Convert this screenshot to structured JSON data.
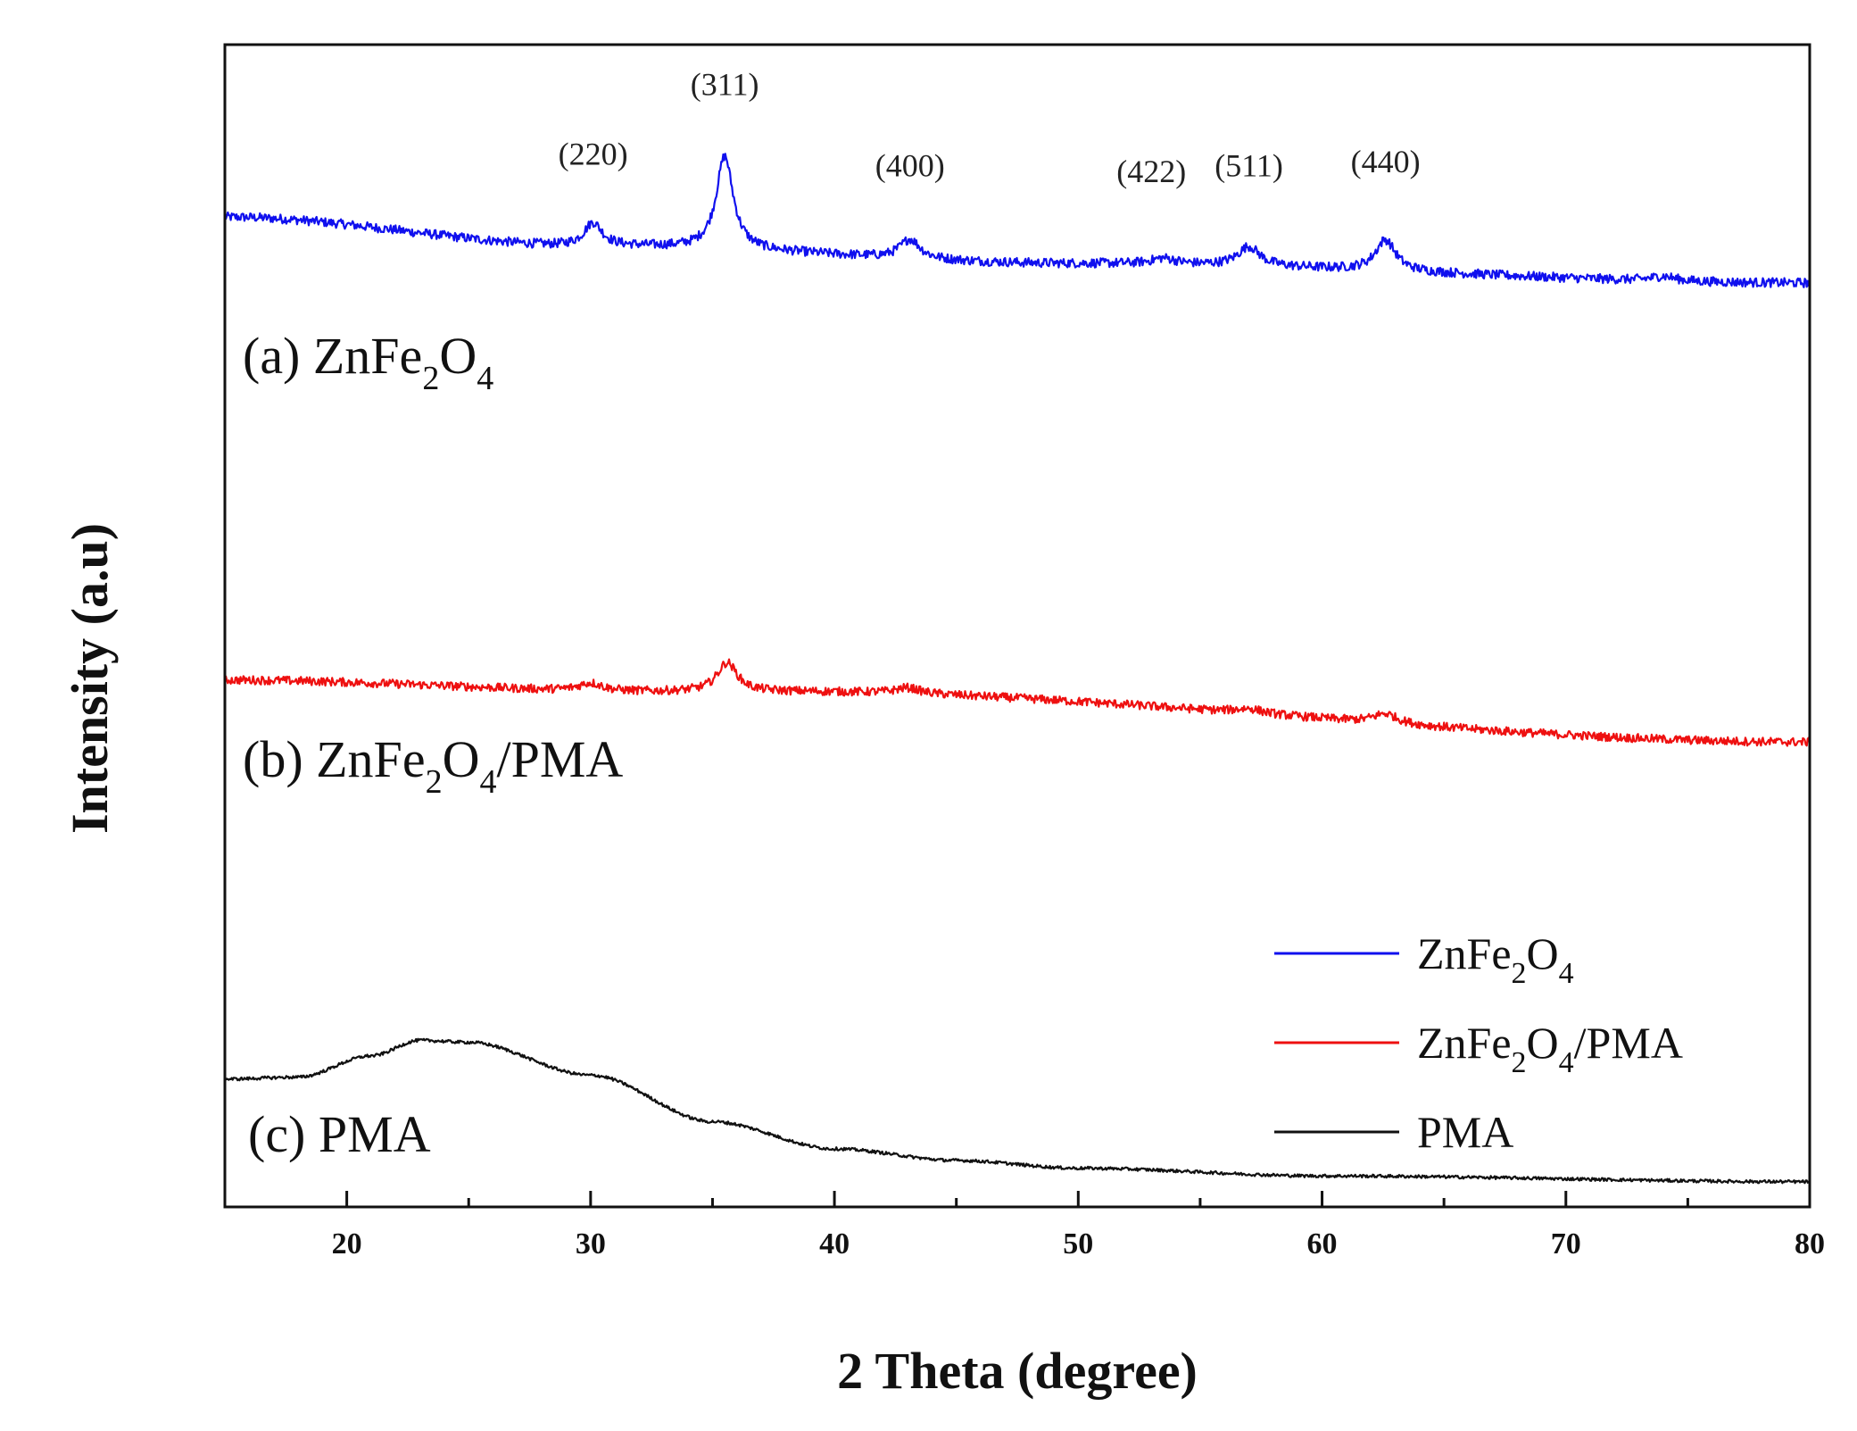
{
  "chart_data": {
    "type": "line",
    "xlabel": "2 Theta (degree)",
    "ylabel": "Intensity (a.u)",
    "xlim": [
      15,
      80
    ],
    "xticks": [
      20,
      30,
      40,
      50,
      60,
      70,
      80
    ],
    "yticks_shown": false,
    "grid": false,
    "legend_position": "bottom-right",
    "series": [
      {
        "name": "ZnFe2O4",
        "legend_main": "ZnFe",
        "legend_sub1": "2",
        "legend_mid": "O",
        "legend_sub2": "4",
        "color": "#1010ee",
        "offset": 1.0,
        "label_prefix": "(a) ZnFe",
        "label_sub1": "2",
        "label_mid": "O",
        "label_sub2": "4",
        "label_suffix": "",
        "baseline": [
          [
            15,
            0.555
          ],
          [
            30,
            0.48
          ],
          [
            50,
            0.435
          ],
          [
            80,
            0.385
          ]
        ],
        "noise": 0.012,
        "peaks": [
          {
            "center": 30.1,
            "height": 0.06,
            "width": 0.45
          },
          {
            "center": 35.5,
            "height": 0.24,
            "width": 0.42
          },
          {
            "center": 43.1,
            "height": 0.05,
            "width": 0.5
          },
          {
            "center": 53.5,
            "height": 0.015,
            "width": 0.6
          },
          {
            "center": 57.0,
            "height": 0.05,
            "width": 0.55
          },
          {
            "center": 62.6,
            "height": 0.08,
            "width": 0.5
          },
          {
            "center": 74.0,
            "height": 0.012,
            "width": 0.6
          }
        ]
      },
      {
        "name": "ZnFe2O4/PMA",
        "legend_main": "ZnFe",
        "legend_sub1": "2",
        "legend_mid": "O",
        "legend_sub2": "4",
        "legend_tail": "/PMA",
        "color": "#ee1010",
        "offset": 0.0,
        "label_prefix": "(b) ZnFe",
        "label_sub1": "2",
        "label_mid": "O",
        "label_sub2": "4",
        "label_suffix": "/PMA",
        "baseline": [
          [
            15,
            0.36
          ],
          [
            33,
            0.33
          ],
          [
            38,
            0.33
          ],
          [
            80,
            0.2
          ]
        ],
        "noise": 0.011,
        "peaks": [
          {
            "center": 30.0,
            "height": 0.02,
            "width": 0.6
          },
          {
            "center": 35.6,
            "height": 0.075,
            "width": 0.5
          },
          {
            "center": 43.0,
            "height": 0.015,
            "width": 0.6
          },
          {
            "center": 57.0,
            "height": 0.012,
            "width": 0.7
          },
          {
            "center": 62.6,
            "height": 0.025,
            "width": 0.6
          }
        ]
      },
      {
        "name": "PMA",
        "legend_main": "PMA",
        "color": "#111111",
        "offset": -1.0,
        "label_prefix": "(c) PMA",
        "label_sub1": "",
        "label_mid": "",
        "label_sub2": "",
        "label_suffix": "",
        "baseline": [
          [
            15,
            0.33
          ],
          [
            18,
            0.335
          ],
          [
            21,
            0.39
          ],
          [
            23,
            0.43
          ],
          [
            25,
            0.425
          ],
          [
            30,
            0.34
          ],
          [
            35,
            0.22
          ],
          [
            40,
            0.15
          ],
          [
            45,
            0.12
          ],
          [
            50,
            0.1
          ],
          [
            60,
            0.08
          ],
          [
            80,
            0.065
          ]
        ],
        "noise": 0.004,
        "peaks": []
      }
    ],
    "peak_labels": [
      {
        "text": "(220)",
        "x": 30.1,
        "y": 1.69
      },
      {
        "text": "(311)",
        "x": 35.5,
        "y": 1.87
      },
      {
        "text": "(400)",
        "x": 43.1,
        "y": 1.66
      },
      {
        "text": "(422)",
        "x": 53.0,
        "y": 1.645
      },
      {
        "text": "(511)",
        "x": 57.0,
        "y": 1.66
      },
      {
        "text": "(440)",
        "x": 62.6,
        "y": 1.67
      }
    ]
  }
}
